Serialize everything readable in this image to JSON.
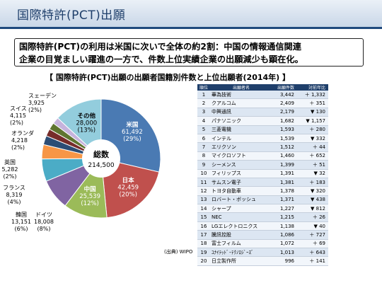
{
  "slide": {
    "title": "国際特許(PCT)出願",
    "summary_line1": "国際特許(PCT)の利用は米国に次いで全体の約2割：中国の情報通信関連",
    "summary_line2": "企業の目覚ましい躍進の一方で、件数上位実績企業の出願減少も顕在化。",
    "chart_heading": "【 国際特許(PCT)出願の出願者国籍別件数と上位出願者(2014年) 】",
    "source": "(出典) WIPO"
  },
  "chart_data": [
    {
      "type": "pie",
      "center_label": "総数",
      "center_value": "214,500",
      "slices": [
        {
          "name": "米国",
          "value": 61492,
          "value_text": "61,492",
          "pct_text": "(29%)",
          "color": "#4a7ab3"
        },
        {
          "name": "日本",
          "value": 42459,
          "value_text": "42,459",
          "pct_text": "(20%)",
          "color": "#c0504d"
        },
        {
          "name": "中国",
          "value": 25539,
          "value_text": "25,539",
          "pct_text": "(12%)",
          "color": "#9bbb59"
        },
        {
          "name": "ドイツ",
          "value": 18008,
          "value_text": "18,008",
          "pct_text": "(8%)",
          "color": "#8064a2"
        },
        {
          "name": "韓国",
          "value": 13151,
          "value_text": "13,151",
          "pct_text": "(6%)",
          "color": "#4bacc6"
        },
        {
          "name": "フランス",
          "value": 8319,
          "value_text": "8,319",
          "pct_text": "(4%)",
          "color": "#f79646"
        },
        {
          "name": "英国",
          "value": 5282,
          "value_text": "5,282",
          "pct_text": "(2%)",
          "color": "#2c4d75"
        },
        {
          "name": "オランダ",
          "value": 4218,
          "value_text": "4,218",
          "pct_text": "(2%)",
          "color": "#772c2a"
        },
        {
          "name": "スイス",
          "value": 4115,
          "value_text": "4,115",
          "pct_text": "(2%)",
          "color": "#5f7530"
        },
        {
          "name": "スェーデン",
          "value": 3925,
          "value_text": "3,925",
          "pct_text": "(2%)",
          "color": "#c6b3dc"
        },
        {
          "name": "その他",
          "value": 28000,
          "value_text": "28,000",
          "pct_text": "(13%)",
          "color": "#93cddd"
        }
      ]
    },
    {
      "type": "table",
      "columns": [
        "順位",
        "出願者名",
        "出願件数",
        "対前年比"
      ],
      "rows": [
        [
          "1",
          "華為技術",
          "3,442",
          "＋ 1,332"
        ],
        [
          "2",
          "クアルコム",
          "2,409",
          "＋ 351"
        ],
        [
          "3",
          "中興通訊",
          "2,179",
          "▼ 130"
        ],
        [
          "4",
          "パナソニック",
          "1,682",
          "▼ 1,157"
        ],
        [
          "5",
          "三菱電機",
          "1,593",
          "＋ 280"
        ],
        [
          "6",
          "インテル",
          "1,539",
          "▼ 332"
        ],
        [
          "7",
          "エリクソン",
          "1,512",
          "＋ 44"
        ],
        [
          "8",
          "マイクロソフト",
          "1,460",
          "＋ 652"
        ],
        [
          "9",
          "シーメンス",
          "1,399",
          "＋ 51"
        ],
        [
          "10",
          "フィリップス",
          "1,391",
          "▼ 32"
        ],
        [
          "11",
          "サムスン電子",
          "1,381",
          "＋ 183"
        ],
        [
          "12",
          "トヨタ自動車",
          "1,378",
          "▼ 320"
        ],
        [
          "13",
          "ロバート・ボッシュ",
          "1,371",
          "▼ 438"
        ],
        [
          "14",
          "シャープ",
          "1,227",
          "▼ 812"
        ],
        [
          "15",
          "NEC",
          "1,215",
          "＋ 26"
        ],
        [
          "16",
          "LGエレクトロニクス",
          "1,138",
          "▼ 40"
        ],
        [
          "17",
          "騰訊控股",
          "1,086",
          "＋ 727"
        ],
        [
          "18",
          "富士フィルム",
          "1,072",
          "＋ 69"
        ],
        [
          "19",
          "ﾕﾅｲﾃｯﾄﾞ･ﾃｸﾉﾛｼﾞｰｽﾞ",
          "1,013",
          "＋ 643"
        ],
        [
          "20",
          "日立製作所",
          "996",
          "＋ 141"
        ]
      ]
    }
  ]
}
